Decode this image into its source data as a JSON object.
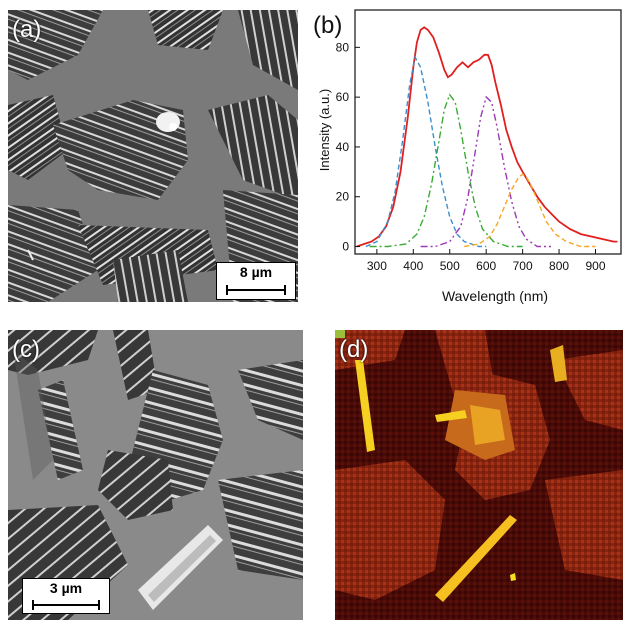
{
  "panels": {
    "a": {
      "label": "(a)",
      "scale_bar": "8 µm"
    },
    "b": {
      "label": "(b)"
    },
    "c": {
      "label": "(c)",
      "scale_bar": "3 µm"
    },
    "d": {
      "label": "(d)"
    }
  },
  "chart_data": {
    "type": "line",
    "xlabel": "Wavelength (nm)",
    "ylabel": "Intensity (a.u.)",
    "xlim": [
      240,
      970
    ],
    "ylim": [
      -3,
      95
    ],
    "xticks": [
      300,
      400,
      500,
      600,
      700,
      800,
      900
    ],
    "yticks": [
      0,
      20,
      40,
      60,
      80
    ],
    "grid": false,
    "legend": "none",
    "series": [
      {
        "color": "#e02020",
        "style": "solid",
        "x": [
          245,
          265,
          285,
          305,
          325,
          345,
          365,
          385,
          400,
          410,
          420,
          430,
          440,
          455,
          470,
          485,
          495,
          505,
          520,
          535,
          550,
          565,
          580,
          595,
          605,
          615,
          625,
          640,
          655,
          670,
          685,
          700,
          720,
          740,
          760,
          780,
          800,
          830,
          860,
          890,
          920,
          950,
          960
        ],
        "y": [
          0,
          1,
          2,
          4,
          8,
          16,
          30,
          52,
          72,
          82,
          87,
          88,
          87,
          84,
          78,
          71,
          68,
          69,
          72,
          74,
          72,
          74,
          75,
          77,
          77,
          73,
          66,
          57,
          47,
          40,
          34,
          30,
          25,
          20,
          16,
          13,
          10,
          7,
          5,
          4,
          3,
          2,
          2
        ]
      },
      {
        "color": "#3a8fd0",
        "style": "dashed",
        "x": [
          270,
          300,
          330,
          350,
          370,
          390,
          405,
          420,
          440,
          460,
          480,
          500,
          520,
          540,
          560,
          580,
          600
        ],
        "y": [
          0,
          2,
          10,
          22,
          42,
          65,
          76,
          72,
          58,
          40,
          24,
          12,
          5,
          2,
          1,
          0,
          0
        ]
      },
      {
        "color": "#3aaa35",
        "style": "dashdot",
        "x": [
          280,
          330,
          380,
          410,
          430,
          450,
          470,
          485,
          500,
          515,
          530,
          550,
          570,
          590,
          620,
          660,
          700
        ],
        "y": [
          0,
          0,
          1,
          5,
          12,
          25,
          42,
          55,
          61,
          58,
          47,
          30,
          16,
          7,
          2,
          0,
          0
        ]
      },
      {
        "color": "#9a3ab5",
        "style": "dashdotdot",
        "x": [
          420,
          460,
          500,
          530,
          550,
          570,
          585,
          600,
          615,
          630,
          650,
          670,
          690,
          710,
          740,
          780
        ],
        "y": [
          0,
          0,
          2,
          8,
          20,
          38,
          52,
          60,
          58,
          48,
          32,
          18,
          8,
          3,
          0,
          0
        ]
      },
      {
        "color": "#f5a623",
        "style": "dashed",
        "x": [
          540,
          580,
          610,
          630,
          650,
          670,
          690,
          700,
          710,
          725,
          745,
          765,
          790,
          820,
          860,
          900
        ],
        "y": [
          0,
          1,
          4,
          9,
          16,
          23,
          28,
          29,
          28,
          24,
          17,
          10,
          5,
          2,
          0,
          0
        ]
      }
    ]
  }
}
